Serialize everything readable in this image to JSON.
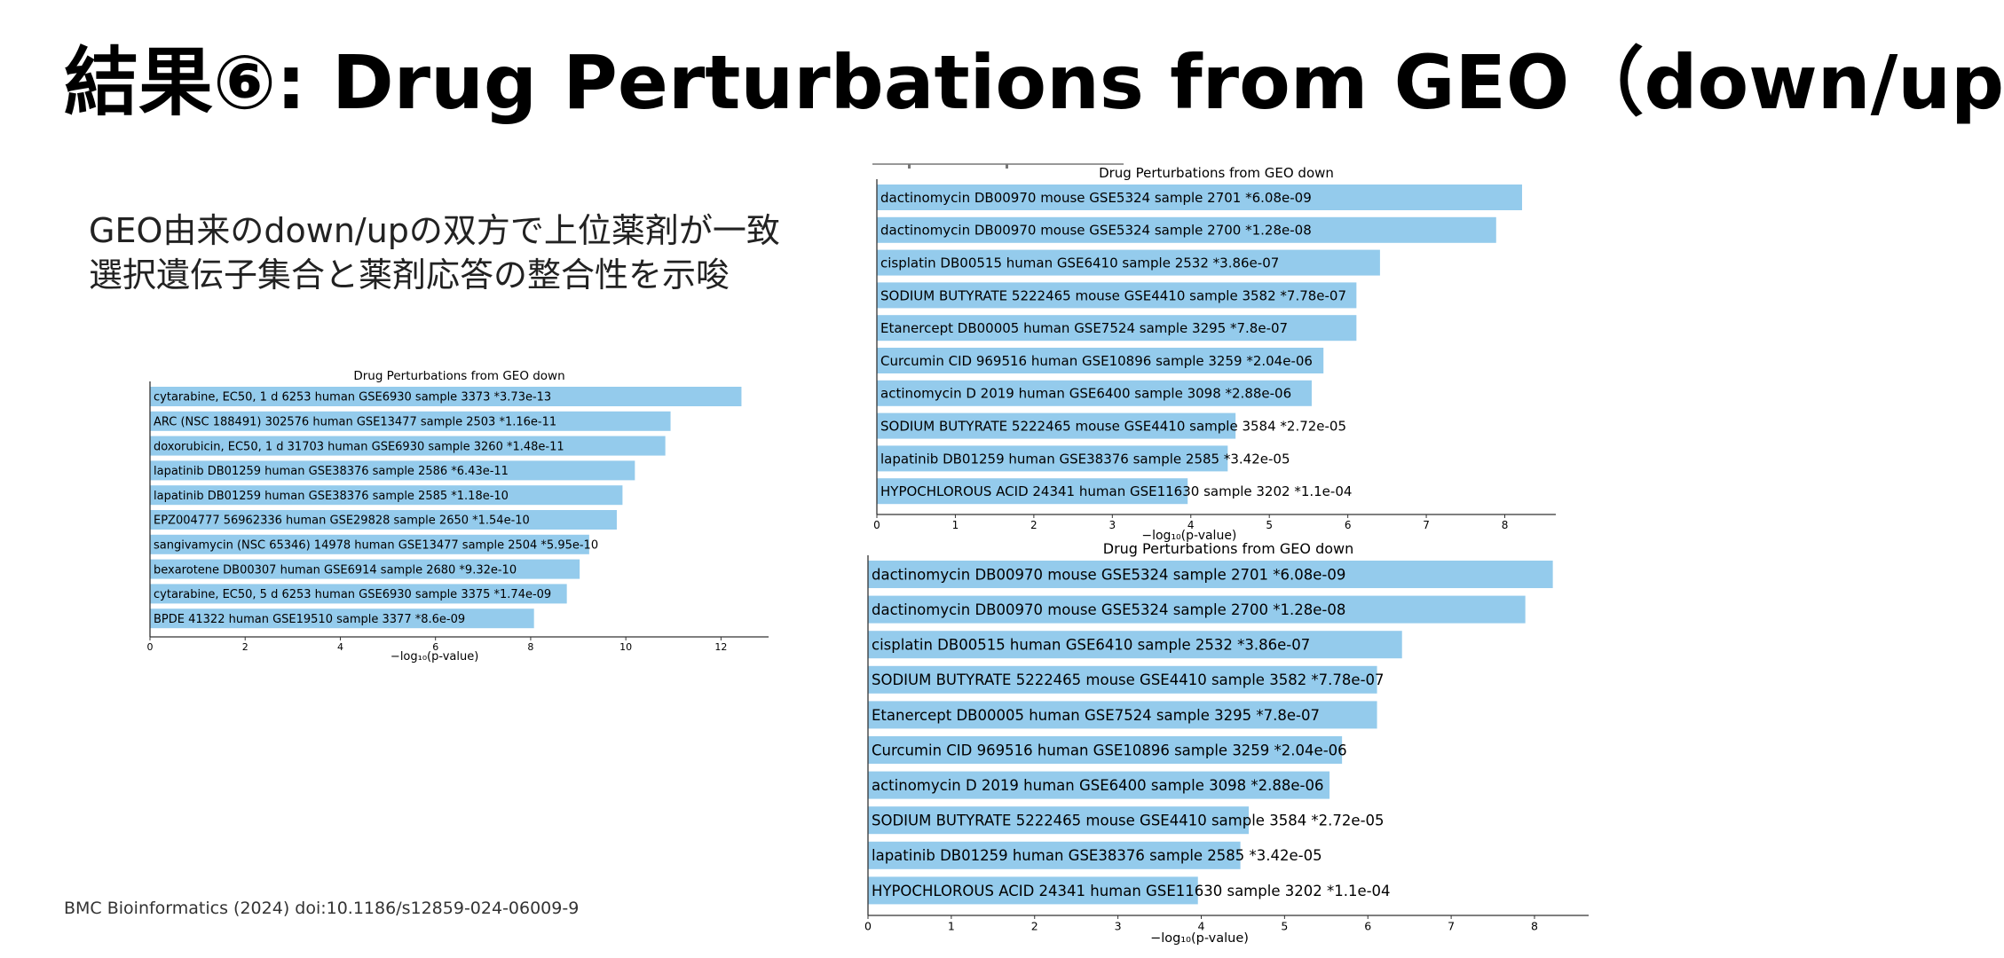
{
  "slide": {
    "title": "結果⑥: Drug Perturbations from GEO（down/up",
    "subtitle_lines": [
      "GEO由来のdown/upの双方で上位薬剤が一致",
      "選択遺伝子集合と薬剤応答の整合性を示唆"
    ],
    "citation": "BMC Bioinformatics (2024) doi:10.1186/s12859-024-06009-9"
  },
  "colors": {
    "bar": "#94cbec",
    "axis": "#333333",
    "text": "#000000"
  },
  "chart_data": [
    {
      "type": "bar",
      "orientation": "horizontal",
      "title": "Drug Perturbations from GEO down",
      "xlabel": "−log₁₀(p-value)",
      "xlim": [
        0,
        13
      ],
      "xticks": [
        0,
        2,
        4,
        6,
        8,
        10,
        12
      ],
      "grid": false,
      "categories": [
        "cytarabine, EC50, 1 d 6253 human GSE6930 sample 3373  *3.73e-13",
        "ARC (NSC 188491) 302576 human GSE13477 sample 2503  *1.16e-11",
        "doxorubicin, EC50, 1 d 31703 human GSE6930 sample 3260  *1.48e-11",
        "lapatinib DB01259 human GSE38376 sample 2586  *6.43e-11",
        "lapatinib DB01259 human GSE38376 sample 2585  *1.18e-10",
        "EPZ004777 56962336 human GSE29828 sample 2650  *1.54e-10",
        "sangivamycin (NSC 65346) 14978 human GSE13477 sample 2504  *5.95e-10",
        "bexarotene DB00307 human GSE6914 sample 2680  *9.32e-10",
        "cytarabine, EC50, 5 d 6253 human GSE6930 sample 3375  *1.74e-09",
        "BPDE 41322 human GSE19510 sample 3377  *8.6e-09"
      ],
      "values": [
        12.43,
        10.94,
        10.83,
        10.19,
        9.93,
        9.81,
        9.23,
        9.03,
        8.76,
        8.07
      ]
    },
    {
      "type": "bar",
      "orientation": "horizontal",
      "title": "Drug Perturbations from GEO down",
      "xlabel": "−log₁₀(p-value)",
      "xlim": [
        0,
        8.65
      ],
      "xticks": [
        0,
        1,
        2,
        3,
        4,
        5,
        6,
        7,
        8
      ],
      "grid": false,
      "categories": [
        "dactinomycin DB00970 mouse GSE5324 sample 2701  *6.08e-09",
        "dactinomycin DB00970 mouse GSE5324 sample 2700  *1.28e-08",
        "cisplatin DB00515 human GSE6410 sample 2532  *3.86e-07",
        "SODIUM BUTYRATE 5222465 mouse GSE4410 sample 3582  *7.78e-07",
        "Etanercept DB00005 human GSE7524 sample 3295  *7.8e-07",
        "Curcumin CID 969516 human GSE10896 sample 3259  *2.04e-06",
        "actinomycin D 2019 human GSE6400 sample 3098  *2.88e-06",
        "SODIUM BUTYRATE 5222465 mouse GSE4410 sample 3584  *2.72e-05",
        "lapatinib DB01259 human GSE38376 sample 2585  *3.42e-05",
        "HYPOCHLOROUS ACID 24341 human GSE11630 sample 3202  *1.1e-04"
      ],
      "values": [
        8.22,
        7.89,
        6.41,
        6.11,
        6.11,
        5.69,
        5.54,
        4.57,
        4.47,
        3.96
      ]
    },
    {
      "type": "bar",
      "orientation": "horizontal",
      "title": "Drug Perturbations from GEO down",
      "xlabel": "−log₁₀(p-value)",
      "xlim": [
        0,
        8.65
      ],
      "xticks": [
        0,
        1,
        2,
        3,
        4,
        5,
        6,
        7,
        8
      ],
      "grid": false,
      "categories": [
        "dactinomycin DB00970 mouse GSE5324 sample 2701  *6.08e-09",
        "dactinomycin DB00970 mouse GSE5324 sample 2700  *1.28e-08",
        "cisplatin DB00515 human GSE6410 sample 2532  *3.86e-07",
        "SODIUM BUTYRATE 5222465 mouse GSE4410 sample 3582  *7.78e-07",
        "Etanercept DB00005 human GSE7524 sample 3295  *7.8e-07",
        "Curcumin CID 969516 human GSE10896 sample 3259  *2.04e-06",
        "actinomycin D 2019 human GSE6400 sample 3098  *2.88e-06",
        "SODIUM BUTYRATE 5222465 mouse GSE4410 sample 3584  *2.72e-05",
        "lapatinib DB01259 human GSE38376 sample 2585  *3.42e-05",
        "HYPOCHLOROUS ACID 24341 human GSE11630 sample 3202  *1.1e-04"
      ],
      "values": [
        8.22,
        7.89,
        6.41,
        6.11,
        6.11,
        5.69,
        5.54,
        4.57,
        4.47,
        3.96
      ]
    }
  ]
}
